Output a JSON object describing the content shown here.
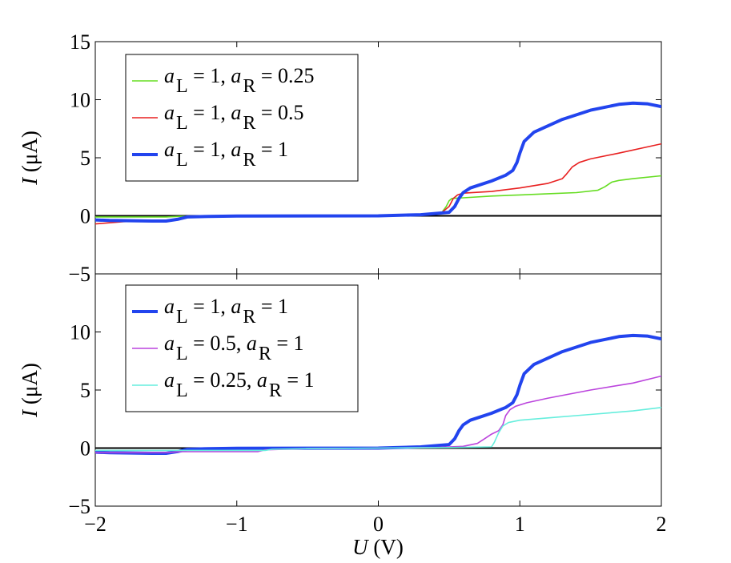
{
  "chart_data": [
    {
      "type": "line",
      "panel": "top",
      "xlabel": "U  (V)",
      "ylabel": "I (μA)",
      "ylabel_italic": "I",
      "ylabel_unit": "(μA)",
      "xlim": [
        -2,
        2
      ],
      "ylim": [
        -5,
        15
      ],
      "yticks": [
        -5,
        0,
        5,
        10,
        15
      ],
      "ytick_labels": [
        "−5",
        "0",
        "5",
        "10",
        "15"
      ],
      "xticks": [
        -2,
        -1,
        0,
        1,
        2
      ],
      "legend_position": "top-left",
      "series": [
        {
          "name": "a_L = 1, a_R = 0.25",
          "legend": {
            "a": "a",
            "sub1": "L",
            "mid": " = 1, ",
            "sub2": "R",
            "end": " = 0.25"
          },
          "color": "#66dd22",
          "width": 1.6,
          "x": [
            -2,
            -1.5,
            -1.4,
            -1,
            0,
            0.3,
            0.45,
            0.48,
            0.5,
            0.52,
            0.6,
            0.8,
            1.0,
            1.2,
            1.4,
            1.55,
            1.6,
            1.65,
            1.7,
            1.8,
            2.0
          ],
          "y": [
            -0.1,
            -0.1,
            -0.05,
            -0.03,
            0,
            0.05,
            0.3,
            0.8,
            1.3,
            1.5,
            1.55,
            1.7,
            1.8,
            1.9,
            2.0,
            2.2,
            2.5,
            2.9,
            3.05,
            3.2,
            3.45
          ]
        },
        {
          "name": "a_L = 1, a_R = 0.5",
          "legend": {
            "a": "a",
            "sub1": "L",
            "mid": " = 1, ",
            "sub2": "R",
            "end": " = 0.5"
          },
          "color": "#e82020",
          "width": 1.6,
          "x": [
            -2,
            -1.8,
            -1.6,
            -1.45,
            -1.35,
            -1.2,
            -1,
            0,
            0.3,
            0.45,
            0.5,
            0.53,
            0.56,
            0.6,
            0.8,
            1.0,
            1.2,
            1.3,
            1.33,
            1.37,
            1.42,
            1.5,
            1.7,
            2.0
          ],
          "y": [
            -0.7,
            -0.5,
            -0.4,
            -0.35,
            -0.15,
            -0.05,
            -0.02,
            0,
            0.1,
            0.3,
            0.8,
            1.5,
            1.8,
            1.95,
            2.1,
            2.4,
            2.8,
            3.2,
            3.6,
            4.2,
            4.6,
            4.9,
            5.4,
            6.2
          ]
        },
        {
          "name": "a_L = 1, a_R = 1",
          "legend": {
            "a": "a",
            "sub1": "L",
            "mid": " = 1, ",
            "sub2": "R",
            "end": " = 1"
          },
          "color": "#2244ee",
          "width": 4,
          "x": [
            -2,
            -1.9,
            -1.6,
            -1.5,
            -1.42,
            -1.35,
            -1.2,
            -1,
            0,
            0.3,
            0.5,
            0.54,
            0.57,
            0.6,
            0.65,
            0.7,
            0.8,
            0.9,
            0.95,
            0.98,
            1.0,
            1.03,
            1.1,
            1.3,
            1.5,
            1.7,
            1.8,
            1.9,
            2.0
          ],
          "y": [
            -0.35,
            -0.4,
            -0.45,
            -0.45,
            -0.3,
            -0.1,
            -0.05,
            -0.02,
            0,
            0.1,
            0.3,
            0.8,
            1.5,
            2.0,
            2.4,
            2.6,
            3.0,
            3.5,
            3.9,
            4.6,
            5.4,
            6.4,
            7.2,
            8.3,
            9.1,
            9.6,
            9.7,
            9.65,
            9.4
          ]
        }
      ]
    },
    {
      "type": "line",
      "panel": "bottom",
      "xlabel": "U  (V)",
      "ylabel": "I (μA)",
      "ylabel_italic": "I",
      "ylabel_unit": "(μA)",
      "xlim": [
        -2,
        2
      ],
      "ylim": [
        -5,
        15
      ],
      "yticks": [
        -5,
        0,
        5,
        10
      ],
      "ytick_labels": [
        "−5",
        "0",
        "5",
        "10"
      ],
      "xticks": [
        -2,
        -1,
        0,
        1,
        2
      ],
      "xtick_labels": [
        "−2",
        "−1",
        "0",
        "1",
        "2"
      ],
      "legend_position": "top-left",
      "series": [
        {
          "name": "a_L = 1, a_R = 1",
          "legend": {
            "a": "a",
            "sub1": "L",
            "mid": " = 1, ",
            "sub2": "R",
            "end": " = 1"
          },
          "color": "#2244ee",
          "width": 4,
          "x": [
            -2,
            -1.9,
            -1.6,
            -1.5,
            -1.42,
            -1.35,
            -1.2,
            -1,
            0,
            0.3,
            0.5,
            0.54,
            0.57,
            0.6,
            0.65,
            0.7,
            0.8,
            0.9,
            0.95,
            0.98,
            1.0,
            1.03,
            1.1,
            1.3,
            1.5,
            1.7,
            1.8,
            1.9,
            2.0
          ],
          "y": [
            -0.35,
            -0.4,
            -0.45,
            -0.45,
            -0.3,
            -0.1,
            -0.05,
            -0.02,
            0,
            0.1,
            0.3,
            0.8,
            1.5,
            2.0,
            2.4,
            2.6,
            3.0,
            3.5,
            3.9,
            4.6,
            5.4,
            6.4,
            7.2,
            8.3,
            9.1,
            9.6,
            9.7,
            9.65,
            9.4
          ]
        },
        {
          "name": "a_L = 0.5, a_R = 1",
          "legend": {
            "a": "a",
            "sub1": "L",
            "mid": " = 0.5, ",
            "sub2": "R",
            "end": " = 1"
          },
          "color": "#bb44dd",
          "width": 1.6,
          "x": [
            -2,
            -1.5,
            -1.4,
            -1,
            -0.85,
            -0.8,
            -0.5,
            0,
            0.4,
            0.6,
            0.7,
            0.75,
            0.8,
            0.85,
            0.88,
            0.9,
            0.93,
            0.97,
            1.05,
            1.2,
            1.5,
            1.8,
            2.0
          ],
          "y": [
            -0.4,
            -0.4,
            -0.3,
            -0.3,
            -0.3,
            -0.15,
            -0.05,
            0,
            0.05,
            0.15,
            0.4,
            0.8,
            1.2,
            1.5,
            2.0,
            2.8,
            3.3,
            3.6,
            3.9,
            4.3,
            5.0,
            5.6,
            6.2
          ]
        },
        {
          "name": "a_L = 0.25, a_R = 1",
          "legend": {
            "a": "a",
            "sub1": "L",
            "mid": " = 0.25, ",
            "sub2": "R",
            "end": " = 1"
          },
          "color": "#66eedd",
          "width": 1.6,
          "x": [
            -2,
            -1.5,
            -1.0,
            -0.8,
            -0.75,
            -0.5,
            0,
            0.5,
            0.8,
            0.82,
            0.85,
            0.88,
            0.92,
            1.0,
            1.2,
            1.5,
            1.8,
            2.0
          ],
          "y": [
            -0.2,
            -0.2,
            -0.2,
            -0.2,
            -0.1,
            -0.05,
            0,
            0.05,
            0.1,
            0.5,
            1.3,
            1.9,
            2.2,
            2.4,
            2.6,
            2.9,
            3.2,
            3.5
          ]
        }
      ]
    }
  ]
}
